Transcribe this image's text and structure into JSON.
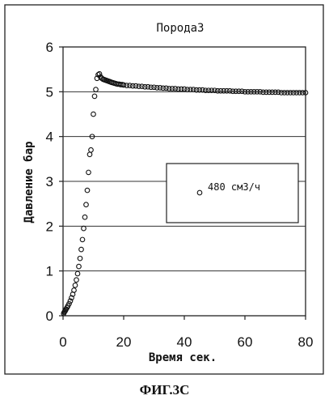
{
  "figure_caption": "ФИГ.3С",
  "chart_data": {
    "type": "scatter",
    "title": "Порода3",
    "xlabel": "Время сек.",
    "ylabel": "Давление бар",
    "xlim": [
      0,
      80
    ],
    "ylim": [
      0,
      6
    ],
    "xticks": [
      "0",
      "20",
      "40",
      "60",
      "80"
    ],
    "yticks": [
      "0",
      "1",
      "2",
      "3",
      "4",
      "5",
      "6"
    ],
    "grid": "horizontal",
    "legend_position": "center-right",
    "marker_color": "#111111",
    "series": [
      {
        "name": "480 см3/ч",
        "x": [
          0.2,
          0.4,
          0.6,
          0.8,
          1.0,
          1.3,
          1.6,
          2.0,
          2.4,
          2.8,
          3.2,
          3.6,
          4.0,
          4.4,
          4.8,
          5.2,
          5.6,
          6.0,
          6.4,
          6.8,
          7.2,
          7.6,
          8.0,
          8.4,
          8.8,
          9.2,
          9.6,
          10.0,
          10.4,
          10.8,
          11.2,
          11.6,
          12.0,
          12.4,
          12.8,
          13.2,
          13.6,
          14.0,
          14.4,
          14.8,
          15.2,
          15.6,
          16.0,
          16.5,
          17.0,
          17.5,
          18.0,
          18.5,
          19.0,
          19.5,
          20.0,
          21,
          22,
          23,
          24,
          25,
          26,
          27,
          28,
          29,
          30,
          31,
          32,
          33,
          34,
          35,
          36,
          37,
          38,
          39,
          40,
          41,
          42,
          43,
          44,
          45,
          46,
          47,
          48,
          49,
          50,
          51,
          52,
          53,
          54,
          55,
          56,
          57,
          58,
          59,
          60,
          61,
          62,
          63,
          64,
          65,
          66,
          67,
          68,
          69,
          70,
          71,
          72,
          73,
          74,
          75,
          76,
          77,
          78,
          79,
          80
        ],
        "y": [
          0.05,
          0.08,
          0.1,
          0.12,
          0.15,
          0.18,
          0.22,
          0.27,
          0.33,
          0.4,
          0.48,
          0.57,
          0.68,
          0.8,
          0.94,
          1.1,
          1.28,
          1.48,
          1.7,
          1.95,
          2.2,
          2.48,
          2.8,
          3.2,
          3.6,
          3.7,
          4.0,
          4.5,
          4.9,
          5.05,
          5.3,
          5.38,
          5.4,
          5.33,
          5.3,
          5.28,
          5.27,
          5.26,
          5.25,
          5.24,
          5.23,
          5.22,
          5.21,
          5.2,
          5.19,
          5.18,
          5.17,
          5.17,
          5.16,
          5.16,
          5.15,
          5.14,
          5.14,
          5.13,
          5.13,
          5.12,
          5.12,
          5.11,
          5.11,
          5.1,
          5.1,
          5.09,
          5.09,
          5.08,
          5.08,
          5.07,
          5.07,
          5.07,
          5.06,
          5.06,
          5.06,
          5.05,
          5.05,
          5.05,
          5.04,
          5.04,
          5.04,
          5.03,
          5.03,
          5.03,
          5.03,
          5.02,
          5.02,
          5.02,
          5.02,
          5.02,
          5.01,
          5.01,
          5.01,
          5.01,
          5.0,
          5.0,
          5.0,
          5.0,
          5.0,
          5.0,
          4.99,
          4.99,
          4.99,
          4.99,
          4.99,
          4.99,
          4.98,
          4.98,
          4.98,
          4.98,
          4.98,
          4.98,
          4.98,
          4.98,
          4.98
        ]
      }
    ]
  }
}
